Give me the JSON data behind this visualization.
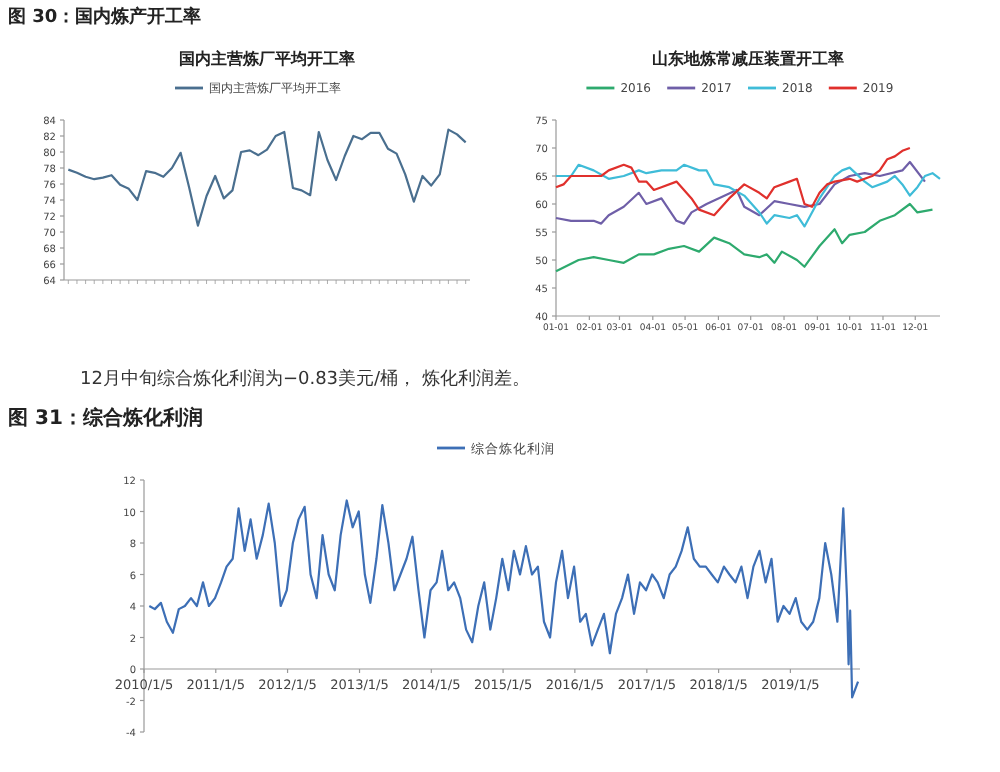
{
  "chart_data": [
    {
      "type": "line",
      "title": "国内主营炼厂平均开工率",
      "annotations": [
        "图 30：国内炼产开工率"
      ],
      "legend": "top",
      "categories": [
        null,
        null,
        null,
        null,
        null,
        null,
        null,
        null,
        null,
        null,
        null,
        null,
        null,
        null,
        null,
        null,
        null,
        null,
        null,
        null,
        null,
        null,
        null,
        null,
        null,
        null,
        null,
        null,
        null,
        null,
        null,
        null,
        null,
        null,
        null,
        null,
        null,
        null,
        null,
        null,
        null,
        null,
        null,
        null,
        null,
        null,
        null
      ],
      "ylim": [
        64,
        84
      ],
      "yticks": [
        64,
        66,
        68,
        70,
        72,
        74,
        76,
        78,
        80,
        82,
        84
      ],
      "series": [
        {
          "name": "国内主营炼厂平均开工率",
          "color": "#4a6f8f",
          "values": [
            77.8,
            77.4,
            76.9,
            76.6,
            76.8,
            77.1,
            75.9,
            75.4,
            74.0,
            77.6,
            77.4,
            76.9,
            78.0,
            79.9,
            75.5,
            70.8,
            74.5,
            77.0,
            74.2,
            75.2,
            80.0,
            80.2,
            79.6,
            80.3,
            82.0,
            82.5,
            75.5,
            75.2,
            74.6,
            82.5,
            79.0,
            76.5,
            79.5,
            82.0,
            81.6,
            82.4,
            82.4,
            80.4,
            79.8,
            77.2,
            73.8,
            77.0,
            75.8,
            77.2,
            82.8,
            82.2,
            81.2
          ]
        }
      ]
    },
    {
      "type": "line",
      "title": "山东地炼常减压装置开工率",
      "legend": "top",
      "xlim": [
        "--01-01",
        "--12-24"
      ],
      "xticks": [
        {
          "value": "--01-01",
          "label": "01-01"
        },
        {
          "value": "--02-01",
          "label": "02-01"
        },
        {
          "value": "--03-01",
          "label": "03-01"
        },
        {
          "value": "--04-01",
          "label": "04-01"
        },
        {
          "value": "--05-01",
          "label": "05-01"
        },
        {
          "value": "--06-01",
          "label": "06-01"
        },
        {
          "value": "--07-01",
          "label": "07-01"
        },
        {
          "value": "--08-01",
          "label": "08-01"
        },
        {
          "value": "--09-01",
          "label": "09-01"
        },
        {
          "value": "--10-01",
          "label": "10-01"
        },
        {
          "value": "--11-01",
          "label": "11-01"
        },
        {
          "value": "--12-01",
          "label": "12-01"
        }
      ],
      "ylim": [
        40,
        75
      ],
      "yticks": [
        40,
        45,
        50,
        55,
        60,
        65,
        70,
        75
      ],
      "series": [
        {
          "name": "2016",
          "color": "#2eaa6e",
          "x": [
            "--01-01",
            "--01-22",
            "--02-05",
            "--02-19",
            "--03-05",
            "--03-19",
            "--04-02",
            "--04-16",
            "--04-30",
            "--05-14",
            "--05-28",
            "--06-11",
            "--06-25",
            "--07-09",
            "--07-16",
            "--07-23",
            "--07-30",
            "--08-13",
            "--08-20",
            "--09-03",
            "--09-17",
            "--09-24",
            "--10-01",
            "--10-15",
            "--10-29",
            "--11-12",
            "--11-26",
            "--12-03",
            "--12-17"
          ],
          "values": [
            48,
            50,
            50.5,
            50,
            49.5,
            51,
            51,
            52,
            52.5,
            51.5,
            54,
            53,
            51,
            50.5,
            51,
            49.5,
            51.5,
            50,
            48.8,
            52.5,
            55.5,
            53,
            54.5,
            55,
            57,
            58,
            60,
            58.5,
            59
          ]
        },
        {
          "name": "2017",
          "color": "#6f5fa8",
          "x": [
            "--01-01",
            "--01-15",
            "--02-05",
            "--02-12",
            "--02-19",
            "--03-05",
            "--03-19",
            "--03-26",
            "--04-09",
            "--04-23",
            "--04-30",
            "--05-07",
            "--05-21",
            "--06-18",
            "--06-25",
            "--07-09",
            "--07-23",
            "--08-06",
            "--08-20",
            "--09-03",
            "--09-17",
            "--10-01",
            "--10-15",
            "--10-29",
            "--11-19",
            "--11-26",
            "--12-10"
          ],
          "values": [
            57.5,
            57,
            57,
            56.5,
            58,
            59.5,
            62,
            60,
            61,
            57,
            56.5,
            58.5,
            60,
            62.5,
            59.5,
            58,
            60.5,
            60,
            59.5,
            60,
            63.5,
            65,
            65.5,
            65,
            66,
            67.5,
            64
          ]
        },
        {
          "name": "2018",
          "color": "#3fbcd8",
          "x": [
            "--01-01",
            "--01-15",
            "--01-22",
            "--02-05",
            "--02-19",
            "--03-05",
            "--03-19",
            "--03-26",
            "--04-09",
            "--04-23",
            "--04-30",
            "--05-14",
            "--05-21",
            "--05-28",
            "--06-11",
            "--06-25",
            "--07-09",
            "--07-16",
            "--07-23",
            "--08-06",
            "--08-13",
            "--08-20",
            "--09-03",
            "--09-17",
            "--09-24",
            "--10-01",
            "--10-15",
            "--10-22",
            "--11-05",
            "--11-12",
            "--11-19",
            "--11-26",
            "--12-03",
            "--12-10",
            "--12-17",
            "--12-24"
          ],
          "values": [
            65,
            65,
            67,
            66,
            64.5,
            65,
            66,
            65.5,
            66,
            66,
            67,
            66,
            66,
            63.5,
            63,
            61.5,
            58.5,
            56.5,
            58,
            57.5,
            58,
            56,
            61,
            65,
            66,
            66.5,
            64,
            63,
            64,
            65,
            63.5,
            61.5,
            63,
            65,
            65.5,
            64.5
          ]
        },
        {
          "name": "2019",
          "color": "#e0302c",
          "x": [
            "--01-01",
            "--01-08",
            "--01-15",
            "--01-29",
            "--02-12",
            "--02-19",
            "--03-05",
            "--03-12",
            "--03-19",
            "--03-26",
            "--04-02",
            "--04-09",
            "--04-23",
            "--05-07",
            "--05-14",
            "--05-28",
            "--06-11",
            "--06-25",
            "--07-09",
            "--07-16",
            "--07-23",
            "--08-06",
            "--08-13",
            "--08-20",
            "--08-27",
            "--09-03",
            "--09-10",
            "--09-17",
            "--10-01",
            "--10-08",
            "--10-15",
            "--10-22",
            "--10-29",
            "--11-05",
            "--11-12",
            "--11-19",
            "--11-26"
          ],
          "values": [
            63,
            63.5,
            65,
            65,
            65,
            66,
            67,
            66.5,
            64,
            64,
            62.5,
            63,
            64,
            61,
            59,
            58,
            61,
            63.5,
            62,
            61,
            63,
            64,
            64.5,
            60,
            59.5,
            62,
            63.5,
            64,
            64.5,
            64,
            64.5,
            65,
            66,
            68,
            68.5,
            69.5,
            70
          ]
        }
      ]
    },
    {
      "type": "line",
      "title": "图 31：综合炼化利润",
      "annotations": [
        "12月中旬综合炼化利润为−0.83美元/桶，    炼化利润差。"
      ],
      "legend": "top",
      "xlim": [
        "2010-01-05",
        "2019-12-25"
      ],
      "xticks": [
        {
          "value": "2010-01-05",
          "label": "2010/1/5"
        },
        {
          "value": "2011-01-05",
          "label": "2011/1/5"
        },
        {
          "value": "2012-01-05",
          "label": "2012/1/5"
        },
        {
          "value": "2013-01-05",
          "label": "2013/1/5"
        },
        {
          "value": "2014-01-05",
          "label": "2014/1/5"
        },
        {
          "value": "2015-01-05",
          "label": "2015/1/5"
        },
        {
          "value": "2016-01-05",
          "label": "2016/1/5"
        },
        {
          "value": "2017-01-05",
          "label": "2017/1/5"
        },
        {
          "value": "2018-01-05",
          "label": "2018/1/5"
        },
        {
          "value": "2019-01-05",
          "label": "2019/1/5"
        }
      ],
      "ylim": [
        -4,
        12
      ],
      "yticks": [
        -4,
        -2,
        0,
        2,
        4,
        6,
        8,
        10,
        12
      ],
      "series": [
        {
          "name": "综合炼化利润",
          "color": "#3d6fb6",
          "x": [
            "2010-02",
            "2010-03",
            "2010-04",
            "2010-05",
            "2010-06",
            "2010-07",
            "2010-08",
            "2010-09",
            "2010-10",
            "2010-11",
            "2010-12",
            "2011-01",
            "2011-02",
            "2011-03",
            "2011-04",
            "2011-05",
            "2011-06",
            "2011-07",
            "2011-08",
            "2011-09",
            "2011-10",
            "2011-11",
            "2011-12",
            "2012-01",
            "2012-02",
            "2012-03",
            "2012-04",
            "2012-05",
            "2012-06",
            "2012-07",
            "2012-08",
            "2012-09",
            "2012-10",
            "2012-11",
            "2012-12",
            "2013-01",
            "2013-02",
            "2013-03",
            "2013-04",
            "2013-05",
            "2013-06",
            "2013-07",
            "2013-08",
            "2013-09",
            "2013-10",
            "2013-11",
            "2013-12",
            "2014-01",
            "2014-02",
            "2014-03",
            "2014-04",
            "2014-05",
            "2014-06",
            "2014-07",
            "2014-08",
            "2014-09",
            "2014-10",
            "2014-11",
            "2014-12",
            "2015-01",
            "2015-02",
            "2015-03",
            "2015-04",
            "2015-05",
            "2015-06",
            "2015-07",
            "2015-08",
            "2015-09",
            "2015-10",
            "2015-11",
            "2015-12",
            "2016-01",
            "2016-02",
            "2016-03",
            "2016-04",
            "2016-05",
            "2016-06",
            "2016-07",
            "2016-08",
            "2016-09",
            "2016-10",
            "2016-11",
            "2016-12",
            "2017-01",
            "2017-02",
            "2017-03",
            "2017-04",
            "2017-05",
            "2017-06",
            "2017-07",
            "2017-08",
            "2017-09",
            "2017-10",
            "2017-11",
            "2017-12",
            "2018-01",
            "2018-02",
            "2018-03",
            "2018-04",
            "2018-05",
            "2018-06",
            "2018-07",
            "2018-08",
            "2018-09",
            "2018-10",
            "2018-11",
            "2018-12",
            "2019-01",
            "2019-02",
            "2019-03",
            "2019-04",
            "2019-05",
            "2019-06",
            "2019-07",
            "2019-08",
            "2019-09",
            "2019-10-01",
            "2019-10-20",
            "2019-10-28",
            "2019-11-05",
            "2019-11-15",
            "2019-12-15"
          ],
          "values": [
            4,
            3.8,
            4.2,
            3,
            2.3,
            3.8,
            4,
            4.5,
            4,
            5.5,
            4,
            4.5,
            5.5,
            6.5,
            7,
            10.2,
            7.5,
            9.5,
            7,
            8.5,
            10.5,
            8,
            4,
            5,
            8,
            9.5,
            10.3,
            6,
            4.5,
            8.5,
            6,
            5,
            8.5,
            10.7,
            9,
            10,
            6,
            4.2,
            7,
            10.4,
            8,
            5,
            6,
            7,
            8.4,
            5,
            2,
            5,
            5.5,
            7.5,
            5,
            5.5,
            4.5,
            2.5,
            1.7,
            4,
            5.5,
            2.5,
            4.5,
            7,
            5,
            7.5,
            6,
            7.8,
            6,
            6.5,
            3,
            2,
            5.5,
            7.5,
            4.5,
            6.5,
            3,
            3.5,
            1.5,
            2.5,
            3.5,
            1,
            3.5,
            4.5,
            6,
            3.5,
            5.5,
            5,
            6,
            5.5,
            4.5,
            6,
            6.5,
            7.5,
            9,
            7,
            6.5,
            6.5,
            6,
            5.5,
            6.5,
            6,
            5.5,
            6.5,
            4.5,
            6.5,
            7.5,
            5.5,
            7,
            3,
            4,
            3.5,
            4.5,
            3,
            2.5,
            3,
            4.5,
            8,
            6,
            3,
            10.2,
            4.5,
            0.3,
            3.7,
            -1.8,
            -0.8
          ]
        }
      ]
    }
  ]
}
